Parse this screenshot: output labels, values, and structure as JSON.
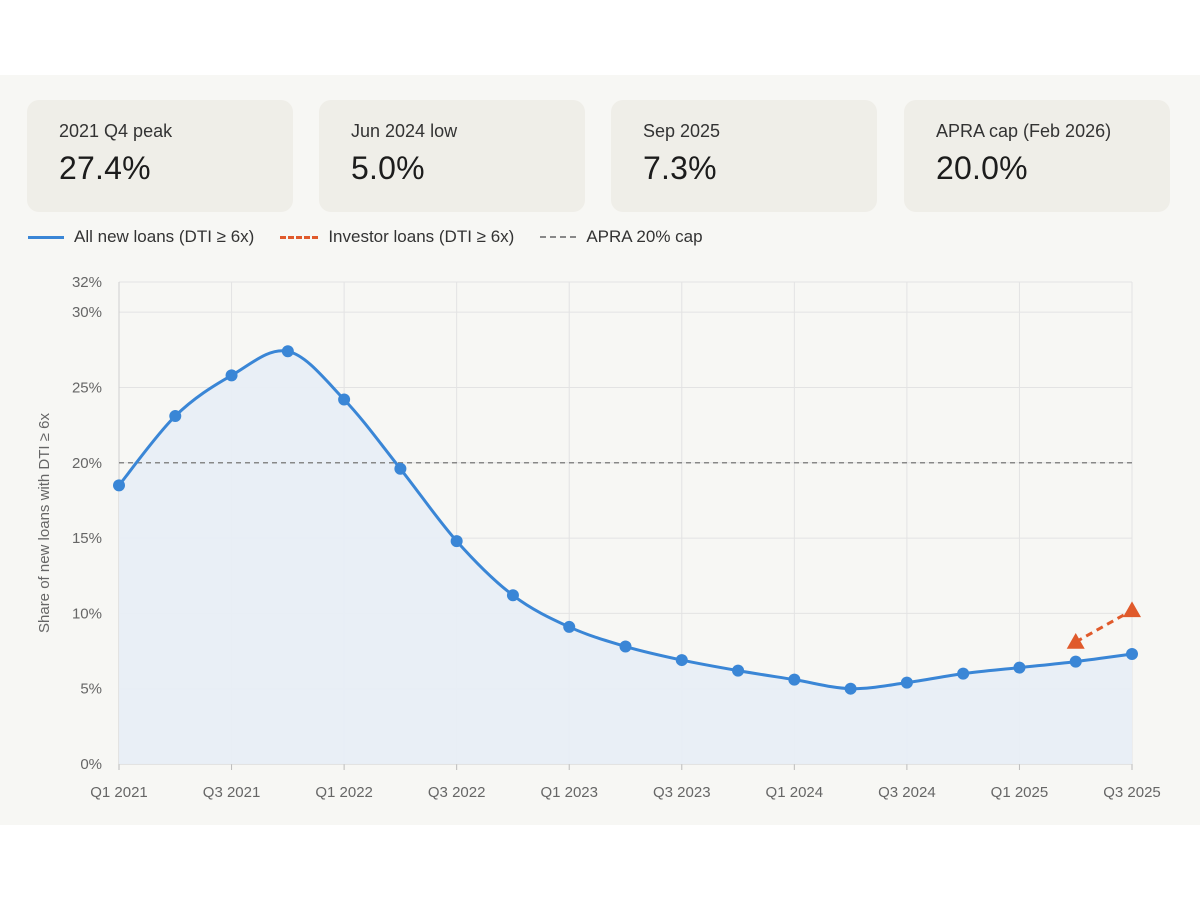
{
  "cards": [
    {
      "label": "2021 Q4 peak",
      "value": "27.4%"
    },
    {
      "label": "Jun 2024 low",
      "value": "5.0%"
    },
    {
      "label": "Sep 2025",
      "value": "7.3%"
    },
    {
      "label": "APRA cap (Feb 2026)",
      "value": "20.0%"
    }
  ],
  "legend": {
    "all": "All new loans (DTI ≥ 6x)",
    "investor": "Investor loans (DTI ≥ 6x)",
    "cap": "APRA 20% cap"
  },
  "colors": {
    "all_loans": "#3a86d6",
    "investor": "#e05a2b",
    "cap": "#888888",
    "area_fill": "#e8eef5"
  },
  "chart_data": {
    "type": "line",
    "ylabel": "Share of new loans with DTI ≥ 6x",
    "xlabel": "",
    "ylim": [
      0,
      32
    ],
    "yticks": [
      0,
      5,
      10,
      15,
      20,
      25,
      30,
      32
    ],
    "ytick_labels": [
      "0%",
      "5%",
      "10%",
      "15%",
      "20%",
      "25%",
      "30%",
      "32%"
    ],
    "x": [
      "Q1 2021",
      "Q2 2021",
      "Q3 2021",
      "Q4 2021",
      "Q1 2022",
      "Q2 2022",
      "Q3 2022",
      "Q4 2022",
      "Q1 2023",
      "Q2 2023",
      "Q3 2023",
      "Q4 2023",
      "Q1 2024",
      "Q2 2024",
      "Q3 2024",
      "Q4 2024",
      "Q1 2025",
      "Q2 2025",
      "Q3 2025"
    ],
    "xtick_labels": [
      "Q1 2021",
      "Q3 2021",
      "Q1 2022",
      "Q3 2022",
      "Q1 2023",
      "Q3 2023",
      "Q1 2024",
      "Q3 2024",
      "Q1 2025",
      "Q3 2025"
    ],
    "series": [
      {
        "name": "All new loans (DTI ≥ 6x)",
        "style": "solid, area fill, circle markers",
        "values": [
          18.5,
          23.1,
          25.8,
          27.4,
          24.2,
          19.6,
          14.8,
          11.2,
          9.1,
          7.8,
          6.9,
          6.2,
          5.6,
          5.0,
          5.4,
          6.0,
          6.4,
          6.8,
          7.3
        ]
      },
      {
        "name": "Investor loans (DTI ≥ 6x)",
        "style": "dashed, triangle markers",
        "x": [
          "Q2 2025",
          "Q3 2025"
        ],
        "values": [
          8.1,
          10.2
        ]
      }
    ],
    "reference_lines": [
      {
        "name": "APRA 20% cap",
        "y": 20,
        "style": "dashed"
      }
    ],
    "grid": true,
    "legend_position": "top-left"
  }
}
